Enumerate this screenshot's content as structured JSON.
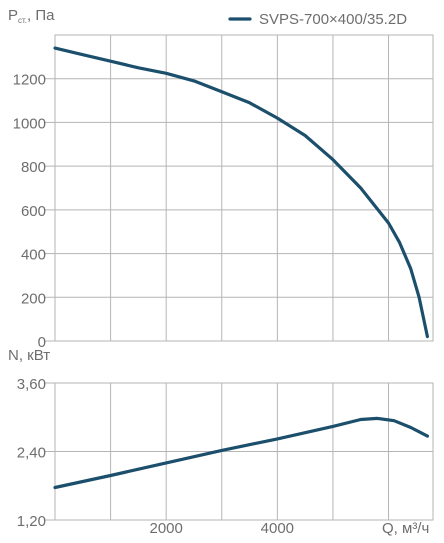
{
  "chart_data": [
    {
      "type": "line",
      "title": "",
      "ylabel_main": "P",
      "ylabel_sub": "ст.",
      "ylabel_unit": ", Па",
      "legend": {
        "label": "SVPS-700×400/35.2D",
        "color": "#1b4f6c",
        "placement": "top-right"
      },
      "ylim": [
        0,
        1400
      ],
      "xlim": [
        0,
        6800
      ],
      "y_ticks": [
        0,
        200,
        400,
        600,
        800,
        1000,
        1200
      ],
      "y_tick_labels": [
        "0",
        "200",
        "400",
        "600",
        "800",
        "1000",
        "1200"
      ],
      "grid": true,
      "series": [
        {
          "name": "SVPS-700×400/35.2D",
          "color": "#1b4f6c",
          "x": [
            0,
            500,
            1000,
            1500,
            2000,
            2500,
            3000,
            3500,
            4000,
            4500,
            5000,
            5500,
            6000,
            6200,
            6400,
            6550,
            6700
          ],
          "values": [
            1340,
            1310,
            1280,
            1250,
            1225,
            1190,
            1140,
            1090,
            1020,
            940,
            830,
            700,
            540,
            450,
            330,
            200,
            20
          ]
        }
      ]
    },
    {
      "type": "line",
      "title": "",
      "ylabel": "N, кВт",
      "xlabel": "Q, м³/ч",
      "ylim": [
        1.2,
        3.6
      ],
      "xlim": [
        0,
        6800
      ],
      "y_ticks": [
        1.2,
        2.4,
        3.6
      ],
      "y_tick_labels": [
        "1,20",
        "2,40",
        "3,60"
      ],
      "x_ticks": [
        2000,
        4000
      ],
      "x_tick_labels": [
        "2000",
        "4000"
      ],
      "grid": true,
      "series": [
        {
          "color": "#1b4f6c",
          "x": [
            0,
            1000,
            2000,
            3000,
            4000,
            5000,
            5500,
            5800,
            6100,
            6400,
            6700
          ],
          "values": [
            1.77,
            1.98,
            2.2,
            2.42,
            2.62,
            2.84,
            2.96,
            2.98,
            2.94,
            2.82,
            2.67
          ]
        }
      ]
    }
  ]
}
